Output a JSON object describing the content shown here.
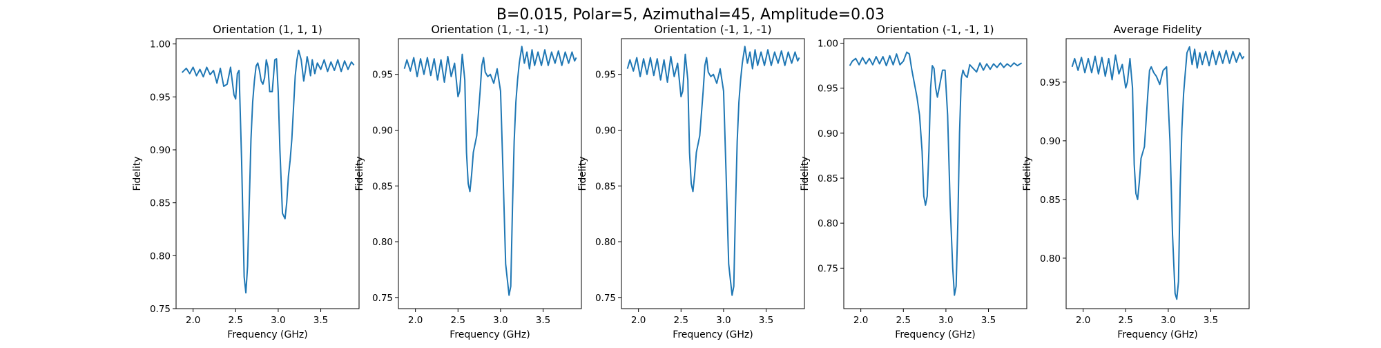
{
  "figure": {
    "title": "B=0.015, Polar=5, Azimuthal=45, Amplitude=0.03"
  },
  "chart_data": [
    {
      "type": "line",
      "title": "Orientation (1, 1, 1)",
      "xlabel": "Frequency (GHz)",
      "ylabel": "Fidelity",
      "xlim": [
        1.8,
        3.95
      ],
      "ylim": [
        0.75,
        1.005
      ],
      "xticks": [
        2.0,
        2.5,
        3.0,
        3.5
      ],
      "xtick_labels": [
        "2.0",
        "2.5",
        "3.0",
        "3.5"
      ],
      "yticks": [
        0.75,
        0.8,
        0.85,
        0.9,
        0.95,
        1.0
      ],
      "ytick_labels": [
        "0.75",
        "0.80",
        "0.85",
        "0.90",
        "0.95",
        "1.00"
      ],
      "grid": false,
      "color": "#1f77b4",
      "series": [
        {
          "x": [
            1.87,
            1.92,
            1.96,
            2.0,
            2.04,
            2.08,
            2.12,
            2.16,
            2.2,
            2.24,
            2.28,
            2.32,
            2.36,
            2.4,
            2.44,
            2.48,
            2.5,
            2.52,
            2.54,
            2.57,
            2.6,
            2.62,
            2.64,
            2.66,
            2.68,
            2.7,
            2.72,
            2.74,
            2.76,
            2.78,
            2.8,
            2.82,
            2.84,
            2.86,
            2.88,
            2.9,
            2.93,
            2.96,
            2.98,
            3.0,
            3.02,
            3.05,
            3.08,
            3.1,
            3.12,
            3.14,
            3.16,
            3.18,
            3.2,
            3.22,
            3.24,
            3.27,
            3.3,
            3.32,
            3.34,
            3.36,
            3.38,
            3.4,
            3.43,
            3.46,
            3.5,
            3.54,
            3.58,
            3.62,
            3.66,
            3.7,
            3.74,
            3.78,
            3.82,
            3.86,
            3.89
          ],
          "y": [
            0.973,
            0.977,
            0.972,
            0.978,
            0.97,
            0.976,
            0.969,
            0.978,
            0.971,
            0.975,
            0.963,
            0.977,
            0.96,
            0.962,
            0.978,
            0.952,
            0.948,
            0.972,
            0.975,
            0.89,
            0.78,
            0.765,
            0.79,
            0.85,
            0.91,
            0.945,
            0.965,
            0.979,
            0.982,
            0.975,
            0.965,
            0.962,
            0.968,
            0.985,
            0.978,
            0.955,
            0.955,
            0.985,
            0.986,
            0.955,
            0.9,
            0.84,
            0.835,
            0.85,
            0.875,
            0.89,
            0.91,
            0.94,
            0.97,
            0.985,
            0.994,
            0.985,
            0.965,
            0.975,
            0.988,
            0.98,
            0.97,
            0.985,
            0.972,
            0.982,
            0.976,
            0.985,
            0.974,
            0.983,
            0.975,
            0.985,
            0.974,
            0.984,
            0.976,
            0.983,
            0.98
          ]
        }
      ]
    },
    {
      "type": "line",
      "title": "Orientation (1, -1, -1)",
      "xlabel": "Frequency (GHz)",
      "ylabel": "Fidelity",
      "xlim": [
        1.8,
        3.95
      ],
      "ylim": [
        0.74,
        0.982
      ],
      "xticks": [
        2.0,
        2.5,
        3.0,
        3.5
      ],
      "xtick_labels": [
        "2.0",
        "2.5",
        "3.0",
        "3.5"
      ],
      "yticks": [
        0.75,
        0.8,
        0.85,
        0.9,
        0.95
      ],
      "ytick_labels": [
        "0.75",
        "0.80",
        "0.85",
        "0.90",
        "0.95"
      ],
      "grid": false,
      "color": "#1f77b4",
      "series": [
        {
          "x": [
            1.87,
            1.9,
            1.94,
            1.98,
            2.02,
            2.06,
            2.1,
            2.14,
            2.18,
            2.22,
            2.26,
            2.3,
            2.34,
            2.38,
            2.42,
            2.46,
            2.5,
            2.52,
            2.55,
            2.58,
            2.6,
            2.62,
            2.64,
            2.66,
            2.68,
            2.72,
            2.76,
            2.78,
            2.8,
            2.82,
            2.85,
            2.88,
            2.92,
            2.96,
            3.0,
            3.03,
            3.06,
            3.1,
            3.12,
            3.14,
            3.16,
            3.18,
            3.2,
            3.22,
            3.25,
            3.28,
            3.31,
            3.34,
            3.37,
            3.4,
            3.44,
            3.48,
            3.52,
            3.56,
            3.6,
            3.64,
            3.68,
            3.72,
            3.76,
            3.8,
            3.84,
            3.87,
            3.89
          ],
          "y": [
            0.955,
            0.963,
            0.953,
            0.965,
            0.948,
            0.964,
            0.95,
            0.965,
            0.949,
            0.964,
            0.945,
            0.963,
            0.943,
            0.966,
            0.948,
            0.96,
            0.93,
            0.935,
            0.968,
            0.945,
            0.88,
            0.852,
            0.845,
            0.86,
            0.88,
            0.895,
            0.935,
            0.958,
            0.965,
            0.952,
            0.948,
            0.95,
            0.942,
            0.955,
            0.935,
            0.86,
            0.78,
            0.752,
            0.76,
            0.83,
            0.89,
            0.925,
            0.945,
            0.96,
            0.975,
            0.96,
            0.97,
            0.955,
            0.972,
            0.958,
            0.97,
            0.958,
            0.972,
            0.958,
            0.97,
            0.96,
            0.971,
            0.958,
            0.97,
            0.96,
            0.97,
            0.962,
            0.965
          ]
        }
      ]
    },
    {
      "type": "line",
      "title": "Orientation (-1, 1, -1)",
      "xlabel": "Frequency (GHz)",
      "ylabel": "Fidelity",
      "xlim": [
        1.8,
        3.95
      ],
      "ylim": [
        0.74,
        0.982
      ],
      "xticks": [
        2.0,
        2.5,
        3.0,
        3.5
      ],
      "xtick_labels": [
        "2.0",
        "2.5",
        "3.0",
        "3.5"
      ],
      "yticks": [
        0.75,
        0.8,
        0.85,
        0.9,
        0.95
      ],
      "ytick_labels": [
        "0.75",
        "0.80",
        "0.85",
        "0.90",
        "0.95"
      ],
      "grid": false,
      "color": "#1f77b4",
      "series": [
        {
          "x": [
            1.87,
            1.9,
            1.94,
            1.98,
            2.02,
            2.06,
            2.1,
            2.14,
            2.18,
            2.22,
            2.26,
            2.3,
            2.34,
            2.38,
            2.42,
            2.46,
            2.5,
            2.52,
            2.55,
            2.58,
            2.6,
            2.62,
            2.64,
            2.66,
            2.68,
            2.72,
            2.76,
            2.78,
            2.8,
            2.82,
            2.85,
            2.88,
            2.92,
            2.96,
            3.0,
            3.03,
            3.06,
            3.1,
            3.12,
            3.14,
            3.16,
            3.18,
            3.2,
            3.22,
            3.25,
            3.28,
            3.31,
            3.34,
            3.37,
            3.4,
            3.44,
            3.48,
            3.52,
            3.56,
            3.6,
            3.64,
            3.68,
            3.72,
            3.76,
            3.8,
            3.84,
            3.87,
            3.89
          ],
          "y": [
            0.955,
            0.963,
            0.953,
            0.965,
            0.948,
            0.964,
            0.95,
            0.965,
            0.949,
            0.964,
            0.945,
            0.963,
            0.943,
            0.966,
            0.948,
            0.96,
            0.93,
            0.935,
            0.968,
            0.945,
            0.88,
            0.852,
            0.845,
            0.86,
            0.88,
            0.895,
            0.935,
            0.958,
            0.965,
            0.952,
            0.948,
            0.95,
            0.942,
            0.955,
            0.935,
            0.86,
            0.78,
            0.752,
            0.76,
            0.83,
            0.89,
            0.925,
            0.945,
            0.96,
            0.975,
            0.96,
            0.97,
            0.955,
            0.972,
            0.958,
            0.97,
            0.958,
            0.972,
            0.958,
            0.97,
            0.96,
            0.971,
            0.958,
            0.97,
            0.96,
            0.97,
            0.962,
            0.965
          ]
        }
      ]
    },
    {
      "type": "line",
      "title": "Orientation (-1, -1, 1)",
      "xlabel": "Frequency (GHz)",
      "ylabel": "Fidelity",
      "xlim": [
        1.8,
        3.95
      ],
      "ylim": [
        0.705,
        1.005
      ],
      "xticks": [
        2.0,
        2.5,
        3.0,
        3.5
      ],
      "xtick_labels": [
        "2.0",
        "2.5",
        "3.0",
        "3.5"
      ],
      "yticks": [
        0.75,
        0.8,
        0.85,
        0.9,
        0.95,
        1.0
      ],
      "ytick_labels": [
        "0.75",
        "0.80",
        "0.85",
        "0.90",
        "0.95",
        "1.00"
      ],
      "grid": false,
      "color": "#1f77b4",
      "series": [
        {
          "x": [
            1.87,
            1.9,
            1.94,
            1.98,
            2.02,
            2.06,
            2.1,
            2.14,
            2.18,
            2.22,
            2.26,
            2.3,
            2.34,
            2.38,
            2.42,
            2.46,
            2.5,
            2.54,
            2.57,
            2.6,
            2.63,
            2.66,
            2.69,
            2.72,
            2.74,
            2.76,
            2.78,
            2.8,
            2.82,
            2.84,
            2.86,
            2.88,
            2.9,
            2.93,
            2.96,
            2.99,
            3.02,
            3.05,
            3.08,
            3.1,
            3.12,
            3.14,
            3.16,
            3.18,
            3.2,
            3.22,
            3.25,
            3.28,
            3.32,
            3.36,
            3.4,
            3.44,
            3.48,
            3.52,
            3.56,
            3.6,
            3.64,
            3.68,
            3.72,
            3.76,
            3.8,
            3.84,
            3.89
          ],
          "y": [
            0.975,
            0.98,
            0.983,
            0.976,
            0.984,
            0.977,
            0.983,
            0.976,
            0.985,
            0.977,
            0.985,
            0.975,
            0.986,
            0.976,
            0.988,
            0.976,
            0.98,
            0.99,
            0.988,
            0.97,
            0.955,
            0.94,
            0.92,
            0.88,
            0.83,
            0.82,
            0.83,
            0.88,
            0.95,
            0.975,
            0.972,
            0.95,
            0.94,
            0.955,
            0.97,
            0.97,
            0.92,
            0.82,
            0.75,
            0.72,
            0.73,
            0.8,
            0.9,
            0.96,
            0.97,
            0.965,
            0.962,
            0.976,
            0.972,
            0.968,
            0.978,
            0.97,
            0.977,
            0.971,
            0.977,
            0.973,
            0.978,
            0.973,
            0.977,
            0.974,
            0.978,
            0.975,
            0.978
          ]
        }
      ]
    },
    {
      "type": "line",
      "title": "Average Fidelity",
      "xlabel": "Frequency (GHz)",
      "ylabel": "Fidelity",
      "xlim": [
        1.8,
        3.95
      ],
      "ylim": [
        0.757,
        0.987
      ],
      "xticks": [
        2.0,
        2.5,
        3.0,
        3.5
      ],
      "xtick_labels": [
        "2.0",
        "2.5",
        "3.0",
        "3.5"
      ],
      "yticks": [
        0.8,
        0.85,
        0.9,
        0.95
      ],
      "ytick_labels": [
        "0.80",
        "0.85",
        "0.90",
        "0.95"
      ],
      "grid": false,
      "color": "#1f77b4",
      "series": [
        {
          "x": [
            1.87,
            1.9,
            1.94,
            1.98,
            2.02,
            2.06,
            2.1,
            2.14,
            2.18,
            2.22,
            2.26,
            2.3,
            2.34,
            2.38,
            2.42,
            2.46,
            2.5,
            2.52,
            2.55,
            2.58,
            2.6,
            2.62,
            2.64,
            2.66,
            2.68,
            2.72,
            2.76,
            2.78,
            2.8,
            2.83,
            2.86,
            2.9,
            2.94,
            2.98,
            3.02,
            3.05,
            3.08,
            3.1,
            3.12,
            3.14,
            3.16,
            3.18,
            3.2,
            3.22,
            3.25,
            3.28,
            3.31,
            3.34,
            3.37,
            3.4,
            3.44,
            3.48,
            3.52,
            3.56,
            3.6,
            3.64,
            3.68,
            3.72,
            3.76,
            3.8,
            3.84,
            3.87,
            3.89
          ],
          "y": [
            0.963,
            0.97,
            0.96,
            0.971,
            0.958,
            0.97,
            0.958,
            0.972,
            0.957,
            0.971,
            0.955,
            0.97,
            0.952,
            0.973,
            0.957,
            0.965,
            0.945,
            0.95,
            0.97,
            0.945,
            0.88,
            0.855,
            0.85,
            0.865,
            0.885,
            0.895,
            0.94,
            0.96,
            0.963,
            0.958,
            0.955,
            0.948,
            0.96,
            0.963,
            0.9,
            0.82,
            0.77,
            0.765,
            0.78,
            0.86,
            0.91,
            0.94,
            0.958,
            0.975,
            0.98,
            0.965,
            0.978,
            0.962,
            0.975,
            0.965,
            0.976,
            0.964,
            0.977,
            0.965,
            0.976,
            0.966,
            0.977,
            0.966,
            0.976,
            0.967,
            0.975,
            0.97,
            0.972
          ]
        }
      ]
    }
  ]
}
